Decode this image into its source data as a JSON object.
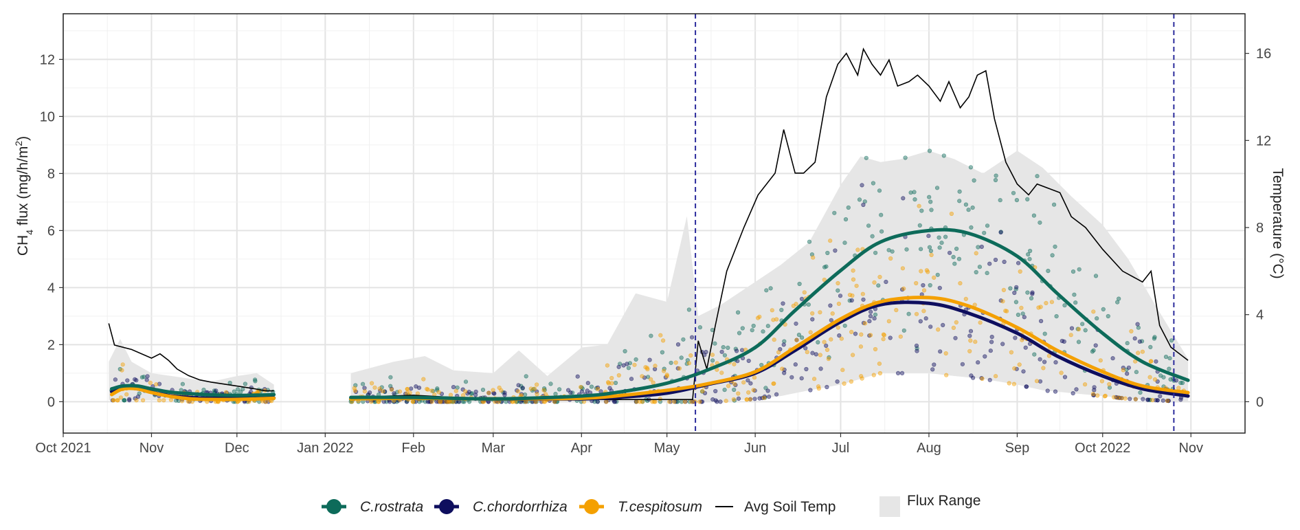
{
  "chart_data": {
    "type": "line",
    "title": "",
    "xlabel": "",
    "ylabel": "CH4 flux (mg/h/m2)",
    "ylabel_parts": {
      "pre": "CH",
      "sub": "4",
      "mid": " flux (mg/h/m",
      "sup": "2",
      "post": ")"
    },
    "y2label": "Temperature (°C)",
    "xlim": [
      "2021-10-01",
      "2022-11-20"
    ],
    "ylim": [
      -1.1,
      13.6
    ],
    "y2lim": [
      -1.44,
      17.82
    ],
    "x_ticks": [
      {
        "date": "2021-10-01",
        "label": "Oct 2021"
      },
      {
        "date": "2021-11-01",
        "label": "Nov"
      },
      {
        "date": "2021-12-01",
        "label": "Dec"
      },
      {
        "date": "2022-01-01",
        "label": "Jan 2022"
      },
      {
        "date": "2022-02-01",
        "label": "Feb"
      },
      {
        "date": "2022-03-01",
        "label": "Mar"
      },
      {
        "date": "2022-04-01",
        "label": "Apr"
      },
      {
        "date": "2022-05-01",
        "label": "May"
      },
      {
        "date": "2022-06-01",
        "label": "Jun"
      },
      {
        "date": "2022-07-01",
        "label": "Jul"
      },
      {
        "date": "2022-08-01",
        "label": "Aug"
      },
      {
        "date": "2022-09-01",
        "label": "Sep"
      },
      {
        "date": "2022-10-01",
        "label": "Oct 2022"
      },
      {
        "date": "2022-11-01",
        "label": "Nov"
      }
    ],
    "y_ticks": [
      0,
      2,
      4,
      6,
      8,
      10,
      12
    ],
    "y2_ticks": [
      0,
      4,
      8,
      12,
      16
    ],
    "grid": true,
    "vlines": [
      {
        "date": "2022-05-11",
        "color": "#2b2b9c",
        "style": "dashed"
      },
      {
        "date": "2022-10-26",
        "color": "#2b2b9c",
        "style": "dashed"
      }
    ],
    "legend_position": "bottom",
    "series": [
      {
        "name": "C.rostrata",
        "italic": true,
        "color": "#0d6b5a",
        "kind": "smooth",
        "segments": [
          {
            "x": [
              "2021-10-18",
              "2021-10-22",
              "2021-10-27",
              "2021-11-01",
              "2021-11-08",
              "2021-11-15",
              "2021-11-22",
              "2021-12-01",
              "2021-12-08",
              "2021-12-14"
            ],
            "y": [
              0.45,
              0.55,
              0.55,
              0.45,
              0.33,
              0.28,
              0.24,
              0.22,
              0.23,
              0.25
            ]
          },
          {
            "x": [
              "2022-01-10",
              "2022-02-01",
              "2022-03-01",
              "2022-04-01",
              "2022-04-15",
              "2022-05-01",
              "2022-05-15",
              "2022-06-01",
              "2022-06-15",
              "2022-07-01",
              "2022-07-15",
              "2022-08-01",
              "2022-08-15",
              "2022-09-01",
              "2022-09-15",
              "2022-10-01",
              "2022-10-15",
              "2022-10-31"
            ],
            "y": [
              0.15,
              0.15,
              0.1,
              0.2,
              0.35,
              0.65,
              1.1,
              1.9,
              3.2,
              4.6,
              5.6,
              6.0,
              5.9,
              5.1,
              3.8,
              2.4,
              1.4,
              0.75
            ]
          }
        ]
      },
      {
        "name": "C.chordorrhiza",
        "italic": true,
        "color": "#0e0e5e",
        "kind": "smooth",
        "segments": [
          {
            "x": [
              "2021-10-18",
              "2021-10-22",
              "2021-10-27",
              "2021-11-01",
              "2021-11-08",
              "2021-11-15",
              "2021-11-22",
              "2021-12-01",
              "2021-12-08",
              "2021-12-14"
            ],
            "y": [
              0.35,
              0.48,
              0.45,
              0.33,
              0.2,
              0.14,
              0.12,
              0.12,
              0.13,
              0.13
            ]
          },
          {
            "x": [
              "2022-01-10",
              "2022-02-01",
              "2022-03-01",
              "2022-04-01",
              "2022-04-15",
              "2022-05-01",
              "2022-05-15",
              "2022-06-01",
              "2022-06-15",
              "2022-07-01",
              "2022-07-15",
              "2022-08-01",
              "2022-08-15",
              "2022-09-01",
              "2022-09-15",
              "2022-10-01",
              "2022-10-15",
              "2022-10-31"
            ],
            "y": [
              0.12,
              0.12,
              0.1,
              0.1,
              0.16,
              0.3,
              0.6,
              1.0,
              1.8,
              2.8,
              3.4,
              3.45,
              3.1,
              2.4,
              1.6,
              0.9,
              0.45,
              0.2
            ]
          }
        ]
      },
      {
        "name": "T.cespitosum",
        "italic": true,
        "color": "#f4a000",
        "kind": "smooth",
        "segments": [
          {
            "x": [
              "2021-10-18",
              "2021-10-22",
              "2021-10-27",
              "2021-11-01",
              "2021-11-08",
              "2021-11-15",
              "2021-11-22",
              "2021-12-01",
              "2021-12-08",
              "2021-12-14"
            ],
            "y": [
              0.25,
              0.45,
              0.45,
              0.32,
              0.18,
              0.1,
              0.08,
              0.08,
              0.1,
              0.12
            ]
          },
          {
            "x": [
              "2022-01-10",
              "2022-02-01",
              "2022-03-01",
              "2022-04-01",
              "2022-04-15",
              "2022-05-01",
              "2022-05-15",
              "2022-06-01",
              "2022-06-15",
              "2022-07-01",
              "2022-07-15",
              "2022-08-01",
              "2022-08-15",
              "2022-09-01",
              "2022-09-15",
              "2022-10-01",
              "2022-10-15",
              "2022-10-31"
            ],
            "y": [
              0.1,
              0.12,
              0.1,
              0.12,
              0.22,
              0.4,
              0.62,
              1.05,
              1.9,
              2.9,
              3.5,
              3.65,
              3.35,
              2.6,
              1.8,
              1.05,
              0.55,
              0.32
            ]
          }
        ]
      },
      {
        "name": "Avg Soil Temp",
        "italic": false,
        "color": "#000000",
        "kind": "line",
        "axis": "right",
        "segments": [
          {
            "x": [
              "2021-10-17",
              "2021-10-19",
              "2021-10-25",
              "2021-11-01",
              "2021-11-04",
              "2021-11-07",
              "2021-11-10",
              "2021-11-14",
              "2021-11-18",
              "2021-11-22",
              "2021-11-27",
              "2021-12-02",
              "2021-12-07",
              "2021-12-11",
              "2021-12-14"
            ],
            "y": [
              3.6,
              2.6,
              2.4,
              2.0,
              2.2,
              1.9,
              1.5,
              1.2,
              1.0,
              0.9,
              0.8,
              0.7,
              0.6,
              0.5,
              0.5
            ]
          },
          {
            "x": [
              "2022-01-10",
              "2022-01-20",
              "2022-02-01",
              "2022-02-15",
              "2022-03-01",
              "2022-03-15",
              "2022-04-01",
              "2022-04-15",
              "2022-05-01",
              "2022-05-10",
              "2022-05-12",
              "2022-05-15",
              "2022-05-18",
              "2022-05-22",
              "2022-05-28",
              "2022-06-02",
              "2022-06-08",
              "2022-06-11",
              "2022-06-15",
              "2022-06-18",
              "2022-06-22",
              "2022-06-26",
              "2022-06-30",
              "2022-07-03",
              "2022-07-07",
              "2022-07-09",
              "2022-07-12",
              "2022-07-15",
              "2022-07-18",
              "2022-07-21",
              "2022-07-25",
              "2022-07-28",
              "2022-08-01",
              "2022-08-05",
              "2022-08-08",
              "2022-08-12",
              "2022-08-15",
              "2022-08-18",
              "2022-08-21",
              "2022-08-24",
              "2022-08-28",
              "2022-09-01",
              "2022-09-05",
              "2022-09-08",
              "2022-09-12",
              "2022-09-16",
              "2022-09-20",
              "2022-09-25",
              "2022-10-01",
              "2022-10-08",
              "2022-10-15",
              "2022-10-18",
              "2022-10-21",
              "2022-10-25",
              "2022-10-28",
              "2022-10-31"
            ],
            "y": [
              0.2,
              0.25,
              0.3,
              0.2,
              0.15,
              0.1,
              0.1,
              0.1,
              0.1,
              0.1,
              2.8,
              1.5,
              3.5,
              6.0,
              8.0,
              9.5,
              10.5,
              12.5,
              10.5,
              10.5,
              11.0,
              14.0,
              15.5,
              16.0,
              15.0,
              16.2,
              15.5,
              15.0,
              15.7,
              14.5,
              14.7,
              15.0,
              14.5,
              13.8,
              14.7,
              13.5,
              14.0,
              15.0,
              15.2,
              13.0,
              11.0,
              10.0,
              9.5,
              10.0,
              9.8,
              9.6,
              8.5,
              8.0,
              7.0,
              6.0,
              5.5,
              6.0,
              3.5,
              2.5,
              2.2,
              1.9
            ]
          }
        ]
      }
    ],
    "flux_range": {
      "name": "Flux Range",
      "color": "#e6e6e6",
      "segments": [
        {
          "x": [
            "2021-10-17",
            "2021-10-21",
            "2021-10-25",
            "2021-11-01",
            "2021-11-08",
            "2021-11-15",
            "2021-11-22",
            "2021-12-01",
            "2021-12-08",
            "2021-12-14"
          ],
          "lower": [
            0.05,
            0.05,
            0.05,
            0.05,
            0.05,
            0.0,
            0.0,
            0.0,
            0.0,
            0.0
          ],
          "upper": [
            1.4,
            2.2,
            1.4,
            1.0,
            0.9,
            0.8,
            0.7,
            0.9,
            1.0,
            0.6
          ]
        },
        {
          "x": [
            "2022-01-10",
            "2022-01-25",
            "2022-02-05",
            "2022-02-15",
            "2022-03-01",
            "2022-03-10",
            "2022-03-20",
            "2022-04-01",
            "2022-04-10",
            "2022-04-20",
            "2022-05-01",
            "2022-05-08",
            "2022-05-12",
            "2022-05-20",
            "2022-06-01",
            "2022-06-10",
            "2022-06-20",
            "2022-07-01",
            "2022-07-08",
            "2022-07-15",
            "2022-07-22",
            "2022-08-01",
            "2022-08-10",
            "2022-08-20",
            "2022-09-01",
            "2022-09-10",
            "2022-09-20",
            "2022-10-01",
            "2022-10-10",
            "2022-10-20",
            "2022-10-31"
          ],
          "lower": [
            0.0,
            0.0,
            0.0,
            0.0,
            0.0,
            0.0,
            0.0,
            0.0,
            0.0,
            0.0,
            0.0,
            0.0,
            0.0,
            0.0,
            0.1,
            0.2,
            0.4,
            0.6,
            0.8,
            1.0,
            1.0,
            1.0,
            0.9,
            0.8,
            0.6,
            0.4,
            0.3,
            0.2,
            0.1,
            0.05,
            0.0
          ],
          "upper": [
            1.0,
            1.4,
            1.6,
            1.1,
            1.0,
            1.8,
            0.9,
            1.9,
            2.0,
            3.8,
            3.5,
            6.5,
            3.0,
            3.4,
            4.2,
            4.8,
            5.6,
            7.6,
            8.6,
            8.4,
            8.5,
            8.8,
            8.5,
            8.0,
            8.8,
            8.2,
            7.2,
            6.2,
            5.0,
            3.3,
            1.5
          ]
        }
      ]
    }
  },
  "legend": {
    "items": [
      {
        "label": "C.rostrata",
        "italic": true,
        "color": "#0d6b5a",
        "kind": "point-line"
      },
      {
        "label": "C.chordorrhiza",
        "italic": true,
        "color": "#0e0e5e",
        "kind": "point-line"
      },
      {
        "label": "T.cespitosum",
        "italic": true,
        "color": "#f4a000",
        "kind": "point-line"
      },
      {
        "label": "Avg Soil Temp",
        "italic": false,
        "color": "#000000",
        "kind": "line"
      },
      {
        "label": "Flux Range",
        "italic": false,
        "color": "#e6e6e6",
        "kind": "box"
      }
    ]
  }
}
